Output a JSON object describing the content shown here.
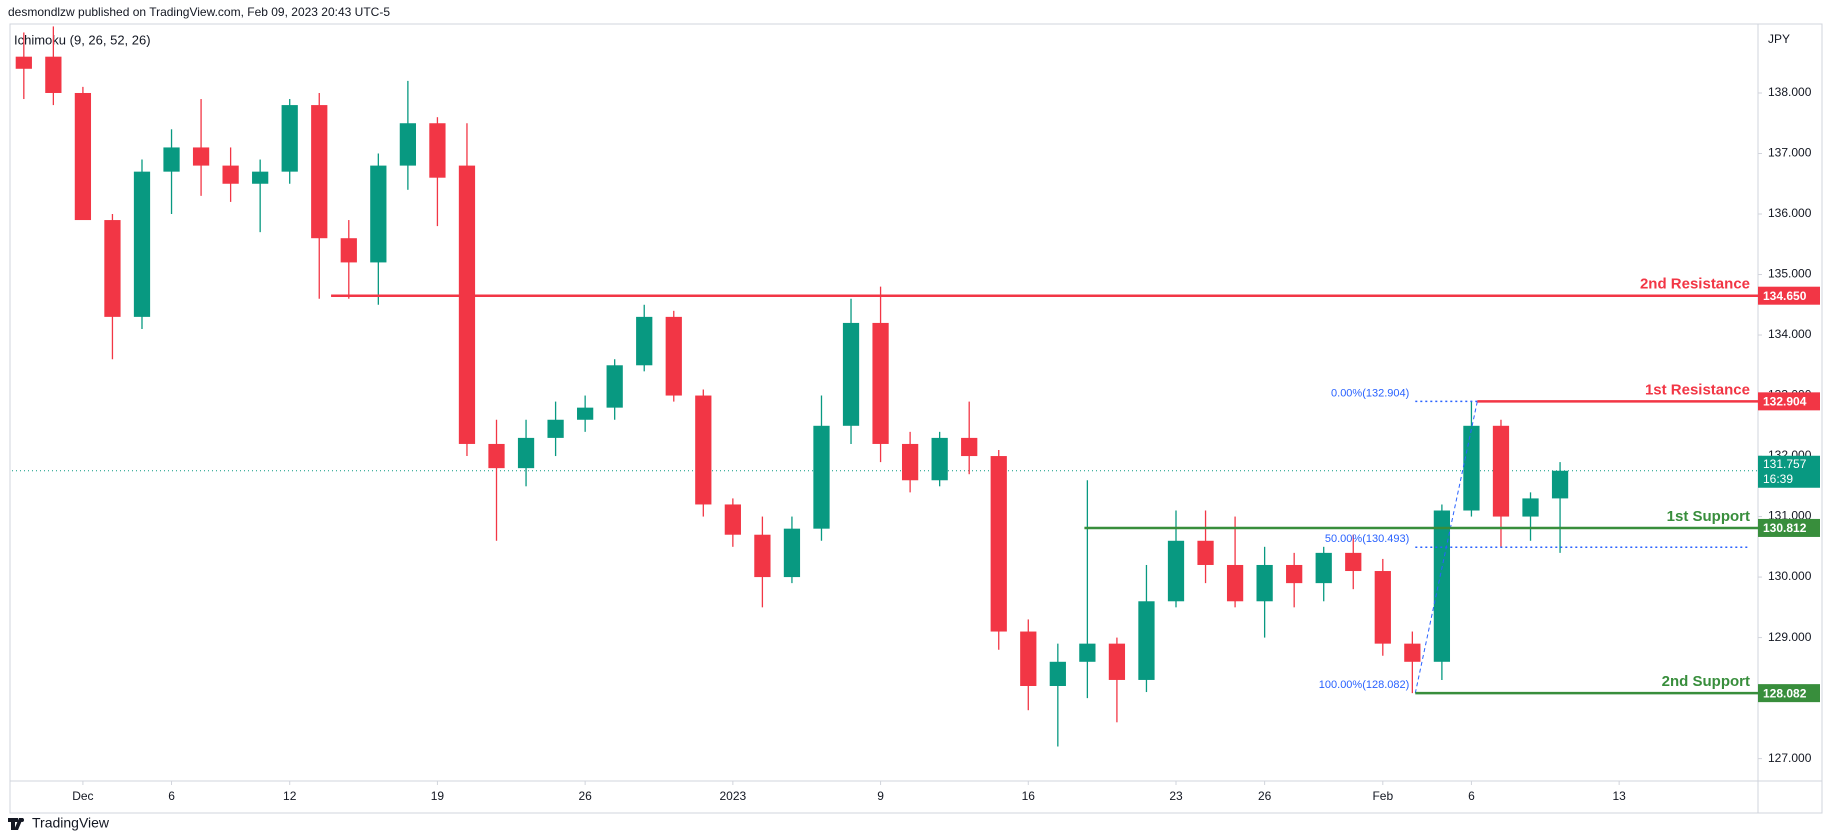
{
  "chart_data": {
    "type": "candlestick",
    "header": "desmondlzw published on TradingView.com, Feb 09, 2023 20:43 UTC-5",
    "indicator": "Ichimoku (9, 26, 52, 26)",
    "currency": "JPY",
    "footer": "TradingView",
    "up_color": "#089981",
    "down_color": "#f23645",
    "x": [
      -2,
      -1,
      0,
      1,
      2,
      3,
      4,
      5,
      6,
      7,
      8,
      9,
      10,
      11,
      12,
      13,
      14,
      15,
      16,
      17,
      18,
      19,
      20,
      21,
      22,
      23,
      24,
      25,
      26,
      27,
      28,
      29,
      30,
      31,
      32,
      33,
      34,
      35,
      36,
      37,
      38,
      39,
      40,
      41,
      42,
      43,
      44,
      45,
      46,
      47,
      48,
      49,
      50
    ],
    "open": [
      138.6,
      138.6,
      138.0,
      135.9,
      134.3,
      136.7,
      137.1,
      136.8,
      136.5,
      136.7,
      137.8,
      135.6,
      135.2,
      136.8,
      137.5,
      136.8,
      132.2,
      131.8,
      132.3,
      132.6,
      132.8,
      133.5,
      134.3,
      133.0,
      131.2,
      130.7,
      130.0,
      130.8,
      132.5,
      134.2,
      132.2,
      131.6,
      132.3,
      132.0,
      129.1,
      128.2,
      128.6,
      128.9,
      128.3,
      129.6,
      130.6,
      130.2,
      129.6,
      130.2,
      129.9,
      130.4,
      130.1,
      128.9,
      128.6,
      131.1,
      132.5,
      131.0,
      131.3
    ],
    "high": [
      139.0,
      139.1,
      138.1,
      136.0,
      136.9,
      137.4,
      137.9,
      137.1,
      136.9,
      137.9,
      138.0,
      135.9,
      137.0,
      138.2,
      137.6,
      137.5,
      132.6,
      132.6,
      132.9,
      133.0,
      133.6,
      134.5,
      134.4,
      133.1,
      131.3,
      131.0,
      131.0,
      133.0,
      134.6,
      134.8,
      132.4,
      132.4,
      132.9,
      132.1,
      129.3,
      128.9,
      131.6,
      129.0,
      130.2,
      131.1,
      131.1,
      131.0,
      130.5,
      130.4,
      130.5,
      130.7,
      130.3,
      129.1,
      131.2,
      132.904,
      132.6,
      131.4,
      131.9
    ],
    "low": [
      137.9,
      137.8,
      135.9,
      133.6,
      134.1,
      136.0,
      136.3,
      136.2,
      135.7,
      136.5,
      134.6,
      134.6,
      134.5,
      136.4,
      135.8,
      132.0,
      130.6,
      131.5,
      132.0,
      132.4,
      132.6,
      133.4,
      132.9,
      131.0,
      130.5,
      129.5,
      129.9,
      130.6,
      132.2,
      131.9,
      131.4,
      131.5,
      131.7,
      128.8,
      127.8,
      127.2,
      128.0,
      127.6,
      128.1,
      129.5,
      129.9,
      129.5,
      129.0,
      129.5,
      129.6,
      129.8,
      128.7,
      128.082,
      128.3,
      131.0,
      130.5,
      130.6,
      130.4
    ],
    "close": [
      138.4,
      138.0,
      135.9,
      134.3,
      136.7,
      137.1,
      136.8,
      136.5,
      136.7,
      137.8,
      135.6,
      135.2,
      136.8,
      137.5,
      136.6,
      132.2,
      131.8,
      132.3,
      132.6,
      132.8,
      133.5,
      134.3,
      133.0,
      131.2,
      130.7,
      130.0,
      130.8,
      132.5,
      134.2,
      132.2,
      131.6,
      132.3,
      132.0,
      129.1,
      128.2,
      128.6,
      128.9,
      128.3,
      129.6,
      130.6,
      130.2,
      129.6,
      130.2,
      129.9,
      130.4,
      130.1,
      128.9,
      128.6,
      131.1,
      132.5,
      131.0,
      131.3,
      131.757
    ],
    "xlim": [
      -2.4,
      56.7
    ],
    "xticks": [
      {
        "value": 0,
        "label": "Dec"
      },
      {
        "value": 3,
        "label": "6"
      },
      {
        "value": 7,
        "label": "12"
      },
      {
        "value": 12,
        "label": "19"
      },
      {
        "value": 17,
        "label": "26"
      },
      {
        "value": 22,
        "label": "2023"
      },
      {
        "value": 27,
        "label": "9"
      },
      {
        "value": 32,
        "label": "16"
      },
      {
        "value": 37,
        "label": "23"
      },
      {
        "value": 40,
        "label": "26"
      },
      {
        "value": 44,
        "label": "Feb"
      },
      {
        "value": 47,
        "label": "6"
      },
      {
        "value": 52,
        "label": "13"
      }
    ],
    "ylim": [
      126.63,
      139.14
    ],
    "yticks": [
      {
        "value": 127,
        "label": "127.000"
      },
      {
        "value": 128,
        "label": "128.000"
      },
      {
        "value": 129,
        "label": "129.000"
      },
      {
        "value": 130,
        "label": "130.000"
      },
      {
        "value": 131,
        "label": "131.000"
      },
      {
        "value": 132,
        "label": "132.000"
      },
      {
        "value": 133,
        "label": "133.000"
      },
      {
        "value": 134,
        "label": "134.000"
      },
      {
        "value": 135,
        "label": "135.000"
      },
      {
        "value": 136,
        "label": "136.000"
      },
      {
        "value": 137,
        "label": "137.000"
      },
      {
        "value": 138,
        "label": "138.000"
      }
    ],
    "levels": [
      {
        "name": "2nd Resistance",
        "value": 134.65,
        "label": "134.650",
        "start": 8.4,
        "color": "#f23645"
      },
      {
        "name": "1st Resistance",
        "value": 132.904,
        "label": "132.904",
        "start": 47.2,
        "color": "#f23645"
      },
      {
        "name": "1st Support",
        "value": 130.812,
        "label": "130.812",
        "start": 33.9,
        "color": "#388e3c"
      },
      {
        "name": "2nd Support",
        "value": 128.082,
        "label": "128.082",
        "start": 45.1,
        "color": "#388e3c"
      }
    ],
    "fib": [
      {
        "label": "0.00%(132.904)",
        "value": 132.904,
        "start": 45.1,
        "end": 47.2
      },
      {
        "label": "50.00%(130.493)",
        "value": 130.493,
        "start": 45.1,
        "end": 56.4
      },
      {
        "label": "100.00%(128.082)",
        "value": 128.082,
        "start": 45.1,
        "end": 45.1
      }
    ],
    "fib_color": "#2962ff",
    "last": {
      "value": 131.757,
      "label": "131.757",
      "countdown": "16:39",
      "color": "#089981"
    }
  }
}
